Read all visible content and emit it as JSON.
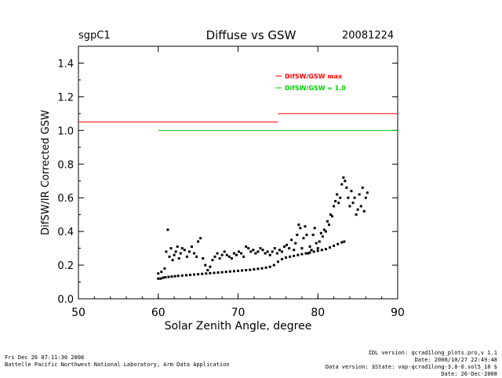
{
  "header": {
    "site": "sgpC1",
    "title": "Diffuse vs GSW",
    "date": "20081224"
  },
  "footer": {
    "left": [
      "Fri Dec 26 07:11:30 2008",
      "Battelle Pacific Northwest National Laboratory, Arm Data Application"
    ],
    "right": [
      "IDL version: qcrad1long_plots.pro,v 1.1",
      "Date: 2008/10/27 22:49:48",
      "Data version: $State: vap-qcrad1long-3.8-0.sol5_10 $",
      "Date: 26-Dec-2008"
    ]
  },
  "colors": {
    "max_line": "#ff0000",
    "ref_line": "#00cc00",
    "points": "#000000"
  },
  "chart_data": {
    "type": "scatter",
    "xlabel": "Solar Zenith Angle, degree",
    "ylabel": "DifSW/IR Corrected GSW",
    "xlim": [
      50,
      90
    ],
    "ylim": [
      0.0,
      1.5
    ],
    "xticks": [
      50,
      60,
      70,
      80,
      90
    ],
    "yticks": [
      0.0,
      0.2,
      0.4,
      0.6,
      0.8,
      1.0,
      1.2,
      1.4
    ],
    "legend": [
      {
        "label": "DifSW/GSW max",
        "color": "#ff0000"
      },
      {
        "label": "DifSW/GSW = 1.0",
        "color": "#00cc00"
      }
    ],
    "reference_lines": [
      {
        "name": "DifSW/GSW max",
        "segments": [
          {
            "x": [
              50,
              75
            ],
            "y": 1.05
          },
          {
            "x": [
              75,
              90
            ],
            "y": 1.1
          }
        ]
      },
      {
        "name": "DifSW/GSW = 1.0",
        "segments": [
          {
            "x": [
              60,
              90
            ],
            "y": 1.0
          }
        ]
      }
    ],
    "series": [
      {
        "x": [
          60.0,
          60.3,
          60.6,
          60.9,
          61.3,
          61.7,
          62.1,
          62.5,
          63.0,
          63.5,
          64.0,
          64.5,
          65.0,
          65.5,
          66.0,
          66.5,
          67.0,
          67.5,
          68.0,
          68.5,
          69.0,
          69.5,
          70.0,
          70.5,
          71.0,
          71.5,
          72.0,
          72.5,
          73.0,
          73.5,
          74.0,
          74.5,
          75.0,
          75.5,
          76.0,
          76.5,
          77.0,
          77.5,
          78.0,
          78.5,
          79.0,
          79.5,
          80.0,
          80.5,
          81.0,
          81.5,
          82.0,
          82.5,
          83.0,
          83.3
        ],
        "y": [
          0.12,
          0.12,
          0.125,
          0.128,
          0.13,
          0.132,
          0.134,
          0.136,
          0.138,
          0.14,
          0.142,
          0.144,
          0.146,
          0.148,
          0.15,
          0.152,
          0.154,
          0.156,
          0.158,
          0.16,
          0.162,
          0.164,
          0.166,
          0.168,
          0.17,
          0.172,
          0.175,
          0.178,
          0.181,
          0.185,
          0.19,
          0.2,
          0.22,
          0.235,
          0.245,
          0.25,
          0.255,
          0.26,
          0.265,
          0.27,
          0.275,
          0.28,
          0.285,
          0.29,
          0.295,
          0.305,
          0.315,
          0.325,
          0.335,
          0.34
        ]
      },
      {
        "x": [
          60.0,
          60.4,
          60.8,
          61.0,
          61.2,
          61.4,
          61.6,
          61.8,
          62.0,
          62.2,
          62.4,
          62.6,
          62.8,
          63.0,
          63.3,
          63.6,
          63.9,
          64.2,
          64.5,
          64.8,
          65.0,
          65.3,
          65.6,
          65.9,
          66.2,
          66.5,
          66.8,
          67.1,
          67.4,
          67.7,
          68.0,
          68.3,
          68.6,
          68.9,
          69.2,
          69.5,
          69.8,
          70.1,
          70.4,
          70.7,
          71.0,
          71.3,
          71.6,
          71.9,
          72.2,
          72.5,
          72.8,
          73.1,
          73.4,
          73.7,
          74.0,
          74.3,
          74.6,
          74.9,
          75.2,
          75.5,
          75.8,
          76.1,
          76.4,
          76.7,
          77.0,
          77.2,
          77.4,
          77.6,
          77.8,
          78.0,
          78.2,
          78.4,
          78.6,
          78.8,
          79.0,
          79.2,
          79.4,
          79.6,
          79.8,
          80.0,
          80.2,
          80.4,
          80.6,
          80.8,
          81.0,
          81.2,
          81.4,
          81.6,
          81.8,
          82.0,
          82.2,
          82.4,
          82.6,
          82.8,
          83.0,
          83.2,
          83.4,
          83.6,
          83.8,
          84.0,
          84.2,
          84.4,
          84.6,
          84.8,
          85.0,
          85.2,
          85.4,
          85.6,
          85.8,
          86.0,
          86.2
        ],
        "y": [
          0.15,
          0.16,
          0.18,
          0.28,
          0.41,
          0.25,
          0.3,
          0.23,
          0.26,
          0.28,
          0.31,
          0.24,
          0.27,
          0.3,
          0.29,
          0.25,
          0.28,
          0.31,
          0.27,
          0.25,
          0.34,
          0.36,
          0.24,
          0.2,
          0.17,
          0.19,
          0.23,
          0.25,
          0.27,
          0.24,
          0.26,
          0.28,
          0.26,
          0.25,
          0.24,
          0.27,
          0.26,
          0.28,
          0.27,
          0.25,
          0.31,
          0.3,
          0.28,
          0.29,
          0.27,
          0.28,
          0.3,
          0.29,
          0.27,
          0.28,
          0.26,
          0.28,
          0.3,
          0.27,
          0.29,
          0.28,
          0.31,
          0.32,
          0.3,
          0.35,
          0.29,
          0.33,
          0.38,
          0.44,
          0.42,
          0.3,
          0.36,
          0.43,
          0.38,
          0.27,
          0.31,
          0.29,
          0.38,
          0.42,
          0.33,
          0.3,
          0.34,
          0.39,
          0.37,
          0.41,
          0.4,
          0.46,
          0.44,
          0.5,
          0.49,
          0.55,
          0.58,
          0.62,
          0.57,
          0.6,
          0.68,
          0.72,
          0.7,
          0.66,
          0.6,
          0.55,
          0.64,
          0.57,
          0.6,
          0.5,
          0.53,
          0.62,
          0.55,
          0.66,
          0.52,
          0.6,
          0.63
        ]
      }
    ]
  }
}
